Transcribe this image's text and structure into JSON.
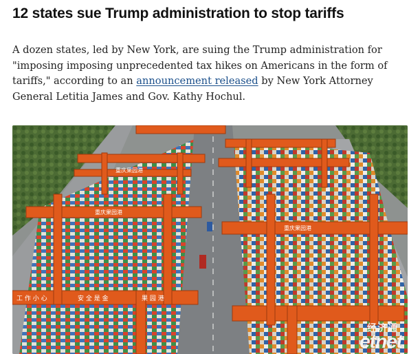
{
  "article": {
    "headline": "12 states sue Trump administration to stop tariffs",
    "lede_part1": "A dozen states, led by New York, are suing the Trump administration for \"imposing imposing unprecedented tax hikes on Americans in the form of tariffs,\" according to an ",
    "lede_link": "announcement released",
    "lede_part2": " by New York Attorney General Letitia James and Gov. Kathy Hochul."
  },
  "photo": {
    "crane_signs": [
      "重庆果园港",
      "重庆果园港",
      "重庆果园港",
      "工 作 小 心",
      "安 全 是 金",
      "果 园 港"
    ],
    "watermark_top": "经济通",
    "watermark_bottom": "etnet"
  },
  "colors": {
    "crane_orange": "#e05a1c",
    "road_gray": "#8d8f92",
    "link_blue": "#1a4f8b"
  }
}
